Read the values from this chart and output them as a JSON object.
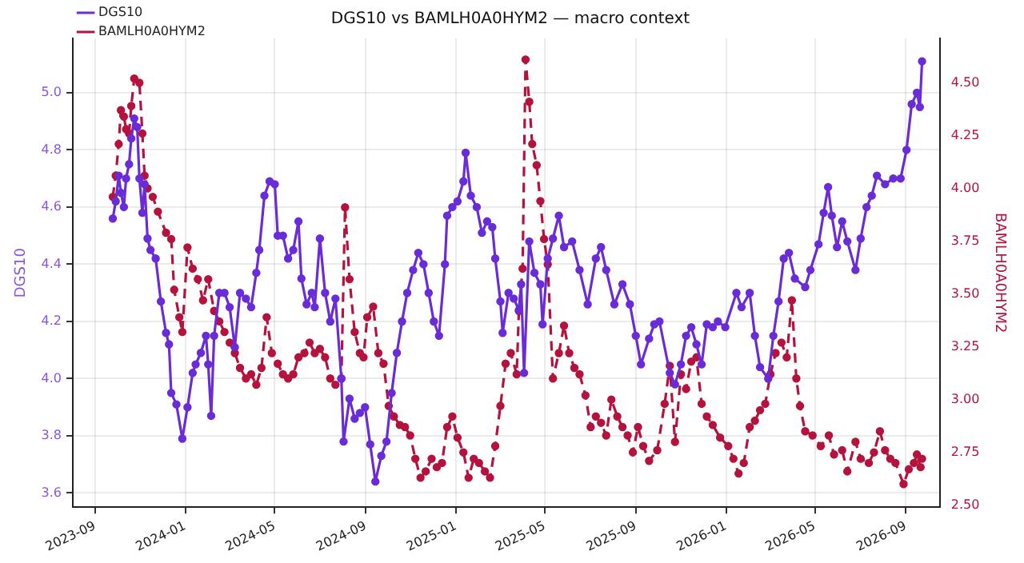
{
  "chart_data": {
    "type": "line",
    "title": "DGS10 vs BAMLH0A0HYM2 — macro context",
    "ylabel": "DGS10",
    "y2label": "BAMLH0A0HYM2",
    "legend": "top left",
    "grid": true,
    "marker": "circle",
    "xlim": [
      "2023-08-02",
      "2026-10-17"
    ],
    "xticks": [
      "2023-09",
      "2024-01",
      "2024-05",
      "2024-09",
      "2025-01",
      "2025-05",
      "2025-09",
      "2026-01",
      "2026-05",
      "2026-09"
    ],
    "ylim": [
      3.55,
      5.19
    ],
    "yticks": [
      {
        "value": 3.6,
        "label": "3.6"
      },
      {
        "value": 3.8,
        "label": "3.8"
      },
      {
        "value": 4.0,
        "label": "4.0"
      },
      {
        "value": 4.2,
        "label": "4.2"
      },
      {
        "value": 4.4,
        "label": "4.4"
      },
      {
        "value": 4.6,
        "label": "4.6"
      },
      {
        "value": 4.8,
        "label": "4.8"
      },
      {
        "value": 5.0,
        "label": "5.0"
      }
    ],
    "y2lim": [
      2.49,
      4.71
    ],
    "y2ticks": [
      {
        "value": 2.5,
        "label": "2.50"
      },
      {
        "value": 2.75,
        "label": "2.75"
      },
      {
        "value": 3.0,
        "label": "3.00"
      },
      {
        "value": 3.25,
        "label": "3.25"
      },
      {
        "value": 3.5,
        "label": "3.50"
      },
      {
        "value": 3.75,
        "label": "3.75"
      },
      {
        "value": 4.0,
        "label": "4.00"
      },
      {
        "value": 4.25,
        "label": "4.25"
      },
      {
        "value": 4.5,
        "label": "4.50"
      }
    ],
    "series": [
      {
        "name": "DGS10",
        "color": "#6a2bd9",
        "line_style": "solid",
        "x": [
          "2023-09-25",
          "2023-09-29",
          "2023-10-03",
          "2023-10-06",
          "2023-10-10",
          "2023-10-13",
          "2023-10-17",
          "2023-10-20",
          "2023-10-24",
          "2023-10-28",
          "2023-10-31",
          "2023-11-04",
          "2023-11-07",
          "2023-11-11",
          "2023-11-15",
          "2023-11-22",
          "2023-11-29",
          "2023-12-06",
          "2023-12-10",
          "2023-12-13",
          "2023-12-20",
          "2023-12-28",
          "2024-01-04",
          "2024-01-11",
          "2024-01-15",
          "2024-01-22",
          "2024-01-29",
          "2024-02-01",
          "2024-02-05",
          "2024-02-09",
          "2024-02-16",
          "2024-02-23",
          "2024-03-01",
          "2024-03-08",
          "2024-03-15",
          "2024-03-23",
          "2024-03-30",
          "2024-04-06",
          "2024-04-10",
          "2024-04-17",
          "2024-04-24",
          "2024-05-01",
          "2024-05-05",
          "2024-05-12",
          "2024-05-19",
          "2024-05-26",
          "2024-06-02",
          "2024-06-06",
          "2024-06-13",
          "2024-06-20",
          "2024-06-24",
          "2024-07-01",
          "2024-07-08",
          "2024-07-15",
          "2024-07-22",
          "2024-07-30",
          "2024-08-02",
          "2024-08-10",
          "2024-08-17",
          "2024-08-24",
          "2024-08-31",
          "2024-09-07",
          "2024-09-14",
          "2024-09-22",
          "2024-09-29",
          "2024-10-06",
          "2024-10-13",
          "2024-10-20",
          "2024-10-27",
          "2024-11-04",
          "2024-11-11",
          "2024-11-18",
          "2024-11-25",
          "2024-12-02",
          "2024-12-09",
          "2024-12-17",
          "2024-12-20",
          "2024-12-27",
          "2025-01-03",
          "2025-01-11",
          "2025-01-14",
          "2025-01-21",
          "2025-01-29",
          "2025-02-05",
          "2025-02-12",
          "2025-02-19",
          "2025-02-23",
          "2025-03-02",
          "2025-03-05",
          "2025-03-13",
          "2025-03-20",
          "2025-03-27",
          "2025-03-30",
          "2025-04-03",
          "2025-04-10",
          "2025-04-17",
          "2025-04-25",
          "2025-04-28",
          "2025-05-05",
          "2025-05-12",
          "2025-05-20",
          "2025-05-27",
          "2025-06-07",
          "2025-06-17",
          "2025-06-28",
          "2025-07-09",
          "2025-07-16",
          "2025-07-23",
          "2025-08-03",
          "2025-08-14",
          "2025-08-24",
          "2025-09-01",
          "2025-09-08",
          "2025-09-19",
          "2025-09-26",
          "2025-10-03",
          "2025-10-17",
          "2025-10-24",
          "2025-11-01",
          "2025-11-08",
          "2025-11-15",
          "2025-11-22",
          "2025-11-29",
          "2025-12-06",
          "2025-12-14",
          "2025-12-21",
          "2025-12-31",
          "2026-01-15",
          "2026-01-22",
          "2026-02-02",
          "2026-02-09",
          "2026-02-16",
          "2026-02-27",
          "2026-03-06",
          "2026-03-13",
          "2026-03-20",
          "2026-03-27",
          "2026-04-04",
          "2026-04-18",
          "2026-04-25",
          "2026-05-06",
          "2026-05-13",
          "2026-05-19",
          "2026-05-24",
          "2026-05-31",
          "2026-06-07",
          "2026-06-14",
          "2026-06-25",
          "2026-07-02",
          "2026-07-10",
          "2026-07-17",
          "2026-07-24",
          "2026-08-04",
          "2026-08-15",
          "2026-08-25",
          "2026-09-02",
          "2026-09-09",
          "2026-09-16",
          "2026-09-20",
          "2026-09-23"
        ],
        "values": [
          4.56,
          4.62,
          4.71,
          4.65,
          4.6,
          4.7,
          4.75,
          4.84,
          4.91,
          4.88,
          4.7,
          4.58,
          4.68,
          4.49,
          4.45,
          4.42,
          4.27,
          4.16,
          4.12,
          3.95,
          3.91,
          3.79,
          3.9,
          4.02,
          4.05,
          4.09,
          4.15,
          4.05,
          3.87,
          4.15,
          4.3,
          4.3,
          4.25,
          4.11,
          4.3,
          4.28,
          4.25,
          4.37,
          4.45,
          4.64,
          4.69,
          4.68,
          4.5,
          4.5,
          4.42,
          4.45,
          4.55,
          4.35,
          4.26,
          4.3,
          4.25,
          4.49,
          4.3,
          4.2,
          4.28,
          4.0,
          3.78,
          3.93,
          3.86,
          3.88,
          3.9,
          3.77,
          3.64,
          3.73,
          3.78,
          3.95,
          4.09,
          4.2,
          4.3,
          4.38,
          4.44,
          4.4,
          4.3,
          4.2,
          4.15,
          4.4,
          4.57,
          4.6,
          4.62,
          4.69,
          4.79,
          4.64,
          4.6,
          4.51,
          4.55,
          4.53,
          4.42,
          4.27,
          4.16,
          4.3,
          4.28,
          4.24,
          4.33,
          4.02,
          4.48,
          4.37,
          4.33,
          4.19,
          4.42,
          4.49,
          4.57,
          4.46,
          4.48,
          4.38,
          4.26,
          4.42,
          4.46,
          4.38,
          4.26,
          4.33,
          4.26,
          4.15,
          4.05,
          4.14,
          4.19,
          4.2,
          4.02,
          3.98,
          4.05,
          4.15,
          4.18,
          4.12,
          4.05,
          4.19,
          4.18,
          4.2,
          4.18,
          4.3,
          4.25,
          4.3,
          4.15,
          4.04,
          4.0,
          4.15,
          4.27,
          4.42,
          4.44,
          4.35,
          4.32,
          4.38,
          4.47,
          4.58,
          4.67,
          4.57,
          4.46,
          4.55,
          4.48,
          4.38,
          4.49,
          4.6,
          4.64,
          4.71,
          4.68,
          4.7,
          4.7,
          4.8,
          4.96,
          5.0,
          4.95,
          5.11
        ]
      },
      {
        "name": "BAMLH0A0HYM2",
        "color": "#b5123e",
        "line_style": "dashed",
        "axis": "y2",
        "x": [
          "2023-09-25",
          "2023-09-29",
          "2023-10-03",
          "2023-10-06",
          "2023-10-10",
          "2023-10-13",
          "2023-10-17",
          "2023-10-20",
          "2023-10-24",
          "2023-10-31",
          "2023-11-04",
          "2023-11-07",
          "2023-11-11",
          "2023-11-18",
          "2023-11-25",
          "2023-12-06",
          "2023-12-13",
          "2023-12-17",
          "2023-12-24",
          "2023-12-28",
          "2024-01-04",
          "2024-01-11",
          "2024-01-18",
          "2024-01-25",
          "2024-02-01",
          "2024-02-09",
          "2024-02-16",
          "2024-02-23",
          "2024-03-01",
          "2024-03-08",
          "2024-03-15",
          "2024-03-23",
          "2024-03-30",
          "2024-04-06",
          "2024-04-13",
          "2024-04-20",
          "2024-04-27",
          "2024-05-05",
          "2024-05-12",
          "2024-05-19",
          "2024-05-26",
          "2024-06-02",
          "2024-06-10",
          "2024-06-17",
          "2024-06-24",
          "2024-07-01",
          "2024-07-08",
          "2024-07-15",
          "2024-07-22",
          "2024-07-30",
          "2024-08-04",
          "2024-08-10",
          "2024-08-17",
          "2024-08-24",
          "2024-08-29",
          "2024-09-03",
          "2024-09-11",
          "2024-09-18",
          "2024-09-25",
          "2024-10-02",
          "2024-10-09",
          "2024-10-17",
          "2024-10-24",
          "2024-10-31",
          "2024-11-07",
          "2024-11-14",
          "2024-11-21",
          "2024-11-29",
          "2024-12-06",
          "2024-12-13",
          "2024-12-20",
          "2024-12-27",
          "2025-01-03",
          "2025-01-11",
          "2025-01-18",
          "2025-01-25",
          "2025-02-01",
          "2025-02-09",
          "2025-02-16",
          "2025-02-23",
          "2025-03-02",
          "2025-03-09",
          "2025-03-16",
          "2025-03-24",
          "2025-03-27",
          "2025-04-01",
          "2025-04-05",
          "2025-04-10",
          "2025-04-14",
          "2025-04-20",
          "2025-04-25",
          "2025-04-30",
          "2025-05-05",
          "2025-05-12",
          "2025-05-20",
          "2025-05-27",
          "2025-06-03",
          "2025-06-10",
          "2025-06-17",
          "2025-06-25",
          "2025-07-02",
          "2025-07-09",
          "2025-07-16",
          "2025-07-23",
          "2025-07-30",
          "2025-08-07",
          "2025-08-14",
          "2025-08-21",
          "2025-08-28",
          "2025-09-04",
          "2025-09-11",
          "2025-09-19",
          "2025-09-30",
          "2025-10-10",
          "2025-10-17",
          "2025-10-24",
          "2025-11-01",
          "2025-11-08",
          "2025-11-15",
          "2025-11-22",
          "2025-11-29",
          "2025-12-06",
          "2025-12-14",
          "2025-12-24",
          "2026-01-04",
          "2026-01-11",
          "2026-01-18",
          "2026-01-25",
          "2026-02-02",
          "2026-02-09",
          "2026-02-16",
          "2026-02-23",
          "2026-03-02",
          "2026-03-09",
          "2026-03-17",
          "2026-03-24",
          "2026-03-31",
          "2026-04-06",
          "2026-04-11",
          "2026-04-18",
          "2026-04-28",
          "2026-05-09",
          "2026-05-20",
          "2026-05-27",
          "2026-06-07",
          "2026-06-14",
          "2026-06-25",
          "2026-07-02",
          "2026-07-13",
          "2026-07-20",
          "2026-07-28",
          "2026-08-04",
          "2026-08-11",
          "2026-08-18",
          "2026-08-29",
          "2026-09-05",
          "2026-09-12",
          "2026-09-16",
          "2026-09-21",
          "2026-09-23"
        ],
        "values": [
          3.96,
          4.06,
          4.21,
          4.37,
          4.34,
          4.28,
          4.26,
          4.39,
          4.52,
          4.5,
          4.26,
          4.06,
          4.0,
          3.96,
          3.89,
          3.79,
          3.76,
          3.52,
          3.39,
          3.32,
          3.72,
          3.62,
          3.57,
          3.47,
          3.57,
          3.42,
          3.37,
          3.32,
          3.27,
          3.22,
          3.15,
          3.1,
          3.12,
          3.07,
          3.15,
          3.39,
          3.22,
          3.17,
          3.12,
          3.1,
          3.12,
          3.2,
          3.22,
          3.27,
          3.22,
          3.24,
          3.2,
          3.1,
          3.07,
          3.1,
          3.91,
          3.57,
          3.32,
          3.22,
          3.2,
          3.39,
          3.44,
          3.22,
          3.17,
          2.97,
          2.92,
          2.88,
          2.87,
          2.83,
          2.72,
          2.63,
          2.66,
          2.72,
          2.68,
          2.7,
          2.87,
          2.92,
          2.82,
          2.75,
          2.63,
          2.72,
          2.7,
          2.66,
          2.63,
          2.78,
          2.97,
          3.17,
          3.22,
          3.12,
          3.42,
          3.62,
          4.61,
          4.41,
          4.21,
          4.11,
          3.94,
          3.76,
          3.64,
          3.1,
          3.22,
          3.35,
          3.22,
          3.15,
          3.12,
          3.02,
          2.87,
          2.92,
          2.89,
          2.83,
          3.0,
          2.92,
          2.87,
          2.83,
          2.75,
          2.87,
          2.78,
          2.71,
          2.76,
          2.98,
          3.16,
          2.8,
          3.12,
          3.05,
          3.18,
          3.2,
          2.98,
          2.92,
          2.88,
          2.82,
          2.78,
          2.72,
          2.65,
          2.7,
          2.87,
          2.9,
          2.95,
          2.98,
          3.12,
          3.22,
          3.27,
          3.2,
          3.47,
          3.1,
          2.97,
          2.85,
          2.83,
          2.78,
          2.83,
          2.74,
          2.76,
          2.66,
          2.8,
          2.72,
          2.7,
          2.75,
          2.85,
          2.76,
          2.72,
          2.7,
          2.6,
          2.67,
          2.7,
          2.74,
          2.68,
          2.72
        ]
      }
    ]
  }
}
